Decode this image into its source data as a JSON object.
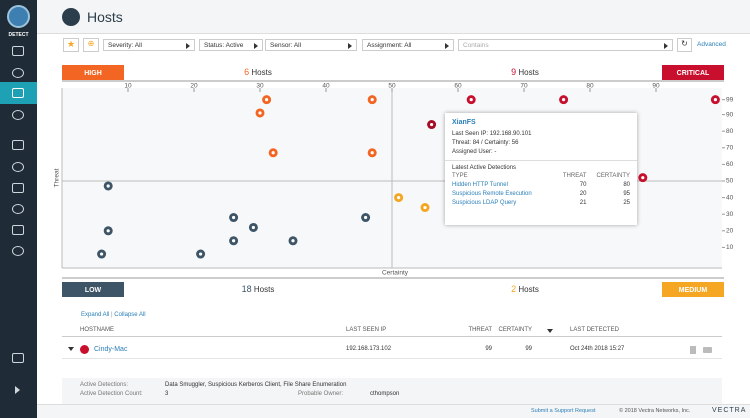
{
  "sidebar": {
    "product": "DETECT"
  },
  "header": {
    "title": "Hosts"
  },
  "filters": {
    "severity": "Severity: All",
    "status": "Status: Active",
    "sensor": "Sensor: All",
    "assignment": "Assignment: All",
    "search_placeholder": "Contains",
    "advanced": "Advanced"
  },
  "chart_data": {
    "type": "scatter",
    "x_label": "Certainty",
    "y_label": "Threat",
    "xlim": [
      0,
      100
    ],
    "ylim": [
      0,
      100
    ],
    "xticks": [
      10,
      20,
      30,
      40,
      50,
      60,
      70,
      80,
      90
    ],
    "yticks": [
      10,
      20,
      30,
      40,
      50,
      60,
      70,
      80,
      90,
      99
    ],
    "quadrants": {
      "high": {
        "label": "HIGH",
        "count": 6,
        "unit": "Hosts",
        "color": "#f26522"
      },
      "critical": {
        "label": "CRITICAL",
        "count": 9,
        "unit": "Hosts",
        "color": "#c8102e"
      },
      "low": {
        "label": "LOW",
        "count": 18,
        "unit": "Hosts",
        "color": "#3d5566"
      },
      "medium": {
        "label": "MEDIUM",
        "count": 2,
        "unit": "Hosts",
        "color": "#f5a623"
      }
    },
    "x": [
      31,
      47,
      30,
      47,
      32,
      62,
      76,
      99,
      56,
      88,
      51,
      55,
      7,
      7,
      6,
      21,
      26,
      26,
      29,
      35,
      46
    ],
    "values": [
      99,
      99,
      91,
      67,
      67,
      99,
      99,
      99,
      84,
      52,
      40,
      34,
      47,
      20,
      6,
      6,
      28,
      14,
      22,
      14,
      28
    ],
    "colors": [
      "#f26522",
      "#f26522",
      "#f26522",
      "#f26522",
      "#f26522",
      "#c8102e",
      "#c8102e",
      "#c8102e",
      "#a50d25",
      "#c8102e",
      "#f5a623",
      "#f5a623",
      "#3d5566",
      "#3d5566",
      "#3d5566",
      "#3d5566",
      "#3d5566",
      "#3d5566",
      "#3d5566",
      "#3d5566",
      "#3d5566"
    ]
  },
  "tooltip": {
    "host": "XianFS",
    "ip_label": "Last Seen IP:",
    "ip": "192.168.90.101",
    "threat_label": "Threat:",
    "threat": 84,
    "certainty_label": "/ Certainty:",
    "certainty": 56,
    "user_label": "Assigned User:",
    "user": "-",
    "section": "Latest Active Detections",
    "columns": [
      "TYPE",
      "THREAT",
      "CERTAINTY"
    ],
    "rows": [
      [
        "Hidden HTTP Tunnel",
        70,
        80
      ],
      [
        "Suspicious Remote Execution",
        20,
        95
      ],
      [
        "Suspicious LDAP Query",
        21,
        25
      ]
    ]
  },
  "table": {
    "expand": "Expand All",
    "separator": "|",
    "collapse": "Collapse All",
    "columns": [
      "HOSTNAME",
      "LAST SEEN IP",
      "THREAT",
      "CERTAINTY",
      "LAST DETECTED"
    ],
    "rows": [
      {
        "host": "Cindy-Mac",
        "ip": "192.168.173.102",
        "threat": 99,
        "certainty": 99,
        "last_detected": "Oct 24th 2018 15:27"
      }
    ],
    "details": {
      "detections_label": "Active Detections:",
      "detections": "Data Smuggler, Suspicious Kerberos Client, File Share Enumeration",
      "count_label": "Active Detection Count:",
      "count": 3,
      "owner_label": "Probable Owner:",
      "owner": "cthompson"
    }
  },
  "footer": {
    "support": "Submit a Support Request",
    "copyright": "© 2018 Vectra Networks, Inc.",
    "brand": "VECTRA"
  }
}
